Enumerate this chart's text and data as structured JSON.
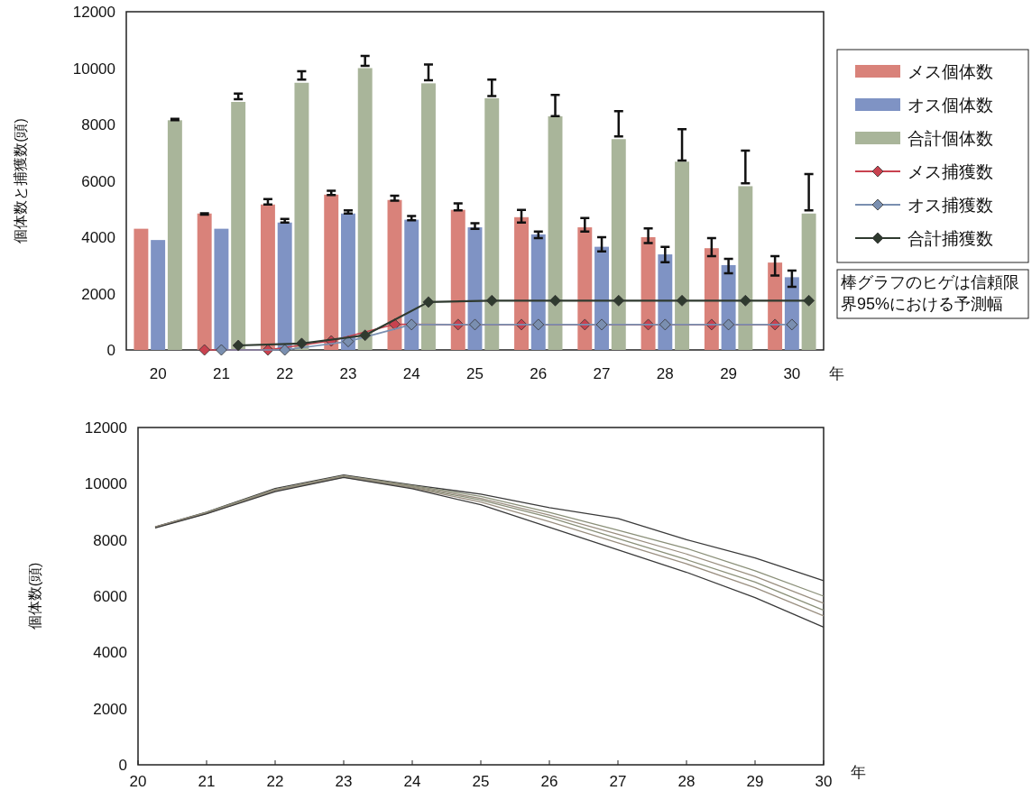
{
  "chart_data": [
    {
      "type": "bar",
      "ylabel": "個体数と捕獲数(頭)",
      "xlabel": "年",
      "categories": [
        "20",
        "21",
        "22",
        "23",
        "24",
        "25",
        "26",
        "27",
        "28",
        "29",
        "30"
      ],
      "ylim": [
        0,
        12000
      ],
      "yticks": [
        0,
        2000,
        4000,
        6000,
        8000,
        10000,
        12000
      ],
      "grid": false,
      "legend": "right",
      "marker": "diamond",
      "series": [
        {
          "name": "メス個体数",
          "color": "#d9827a",
          "values": [
            4300,
            4840,
            5160,
            5510,
            5320,
            4970,
            4710,
            4350,
            4000,
            3610,
            3100
          ],
          "errors": [
            null,
            [
              4800,
              4850
            ],
            [
              5160,
              5350
            ],
            [
              5500,
              5650
            ],
            [
              5300,
              5470
            ],
            [
              4950,
              5200
            ],
            [
              4520,
              4970
            ],
            [
              4200,
              4680
            ],
            [
              3790,
              4310
            ],
            [
              3330,
              3970
            ],
            [
              2640,
              3330
            ]
          ]
        },
        {
          "name": "オス個体数",
          "color": "#7f93c4",
          "values": [
            3900,
            4300,
            4520,
            4840,
            4620,
            4350,
            4100,
            3660,
            3390,
            3010,
            2580
          ],
          "errors": [
            null,
            null,
            [
              4520,
              4650
            ],
            [
              4840,
              4950
            ],
            [
              4600,
              4750
            ],
            [
              4300,
              4500
            ],
            [
              3970,
              4200
            ],
            [
              3500,
              4000
            ],
            [
              3110,
              3660
            ],
            [
              2720,
              3230
            ],
            [
              2240,
              2820
            ]
          ]
        },
        {
          "name": "合計個体数",
          "color": "#a9b59a",
          "values": [
            8150,
            8800,
            9480,
            10000,
            9460,
            8930,
            8290,
            7480,
            6680,
            5810,
            4840
          ],
          "errors": [
            [
              8150,
              8200
            ],
            [
              8900,
              9100
            ],
            [
              9590,
              9890
            ],
            [
              10080,
              10430
            ],
            [
              9570,
              10130
            ],
            [
              9010,
              9590
            ],
            [
              8300,
              9050
            ],
            [
              7580,
              8470
            ],
            [
              6720,
              7830
            ],
            [
              5910,
              7070
            ],
            [
              4950,
              6240
            ]
          ]
        },
        {
          "name": "メス捕獲数",
          "type": "line",
          "color": "#c8424f",
          "values": [
            null,
            0,
            0,
            320,
            910,
            900,
            900,
            900,
            900,
            900,
            900
          ]
        },
        {
          "name": "オス捕獲数",
          "type": "line",
          "color": "#7a8fb0",
          "values": [
            null,
            0,
            0,
            300,
            900,
            900,
            900,
            900,
            900,
            900,
            900
          ]
        },
        {
          "name": "合計捕獲数",
          "type": "line",
          "color": "#2f3a2f",
          "values": [
            null,
            160,
            230,
            520,
            1700,
            1750,
            1750,
            1750,
            1750,
            1750,
            1750
          ]
        }
      ],
      "annotations": [
        "棒グラフのヒゲは信頼限界95%における予測幅"
      ]
    },
    {
      "type": "line",
      "ylabel": "個体数(頭)",
      "xlabel": "年",
      "x": [
        20.25,
        21,
        22,
        23,
        24,
        25,
        26,
        27,
        28,
        29,
        30
      ],
      "xlim": [
        20,
        30
      ],
      "xticks": [
        20,
        21,
        22,
        23,
        24,
        25,
        26,
        27,
        28,
        29,
        30
      ],
      "ylim": [
        0,
        12000
      ],
      "yticks": [
        0,
        2000,
        4000,
        6000,
        8000,
        10000,
        12000
      ],
      "grid": false,
      "marker": "none",
      "series": [
        {
          "color": "#3a3a3a",
          "values": [
            8470,
            8990,
            9830,
            10310,
            9960,
            9630,
            9150,
            8760,
            8010,
            7360,
            6550
          ]
        },
        {
          "color": "#8a8f78",
          "values": [
            8450,
            8980,
            9800,
            10290,
            9930,
            9550,
            8980,
            8350,
            7700,
            6900,
            6000
          ]
        },
        {
          "color": "#9a8f80",
          "values": [
            8460,
            8960,
            9780,
            10270,
            9900,
            9480,
            8880,
            8200,
            7500,
            6700,
            5750
          ]
        },
        {
          "color": "#8a8f78",
          "values": [
            8440,
            8950,
            9760,
            10250,
            9880,
            9420,
            8800,
            8050,
            7300,
            6500,
            5500
          ]
        },
        {
          "color": "#9a8f80",
          "values": [
            8450,
            8940,
            9740,
            10230,
            9850,
            9350,
            8650,
            7900,
            7150,
            6300,
            5300
          ]
        },
        {
          "color": "#3a3a3a",
          "values": [
            8430,
            8930,
            9720,
            10220,
            9820,
            9250,
            8450,
            7650,
            6850,
            5950,
            4900
          ]
        }
      ]
    }
  ]
}
